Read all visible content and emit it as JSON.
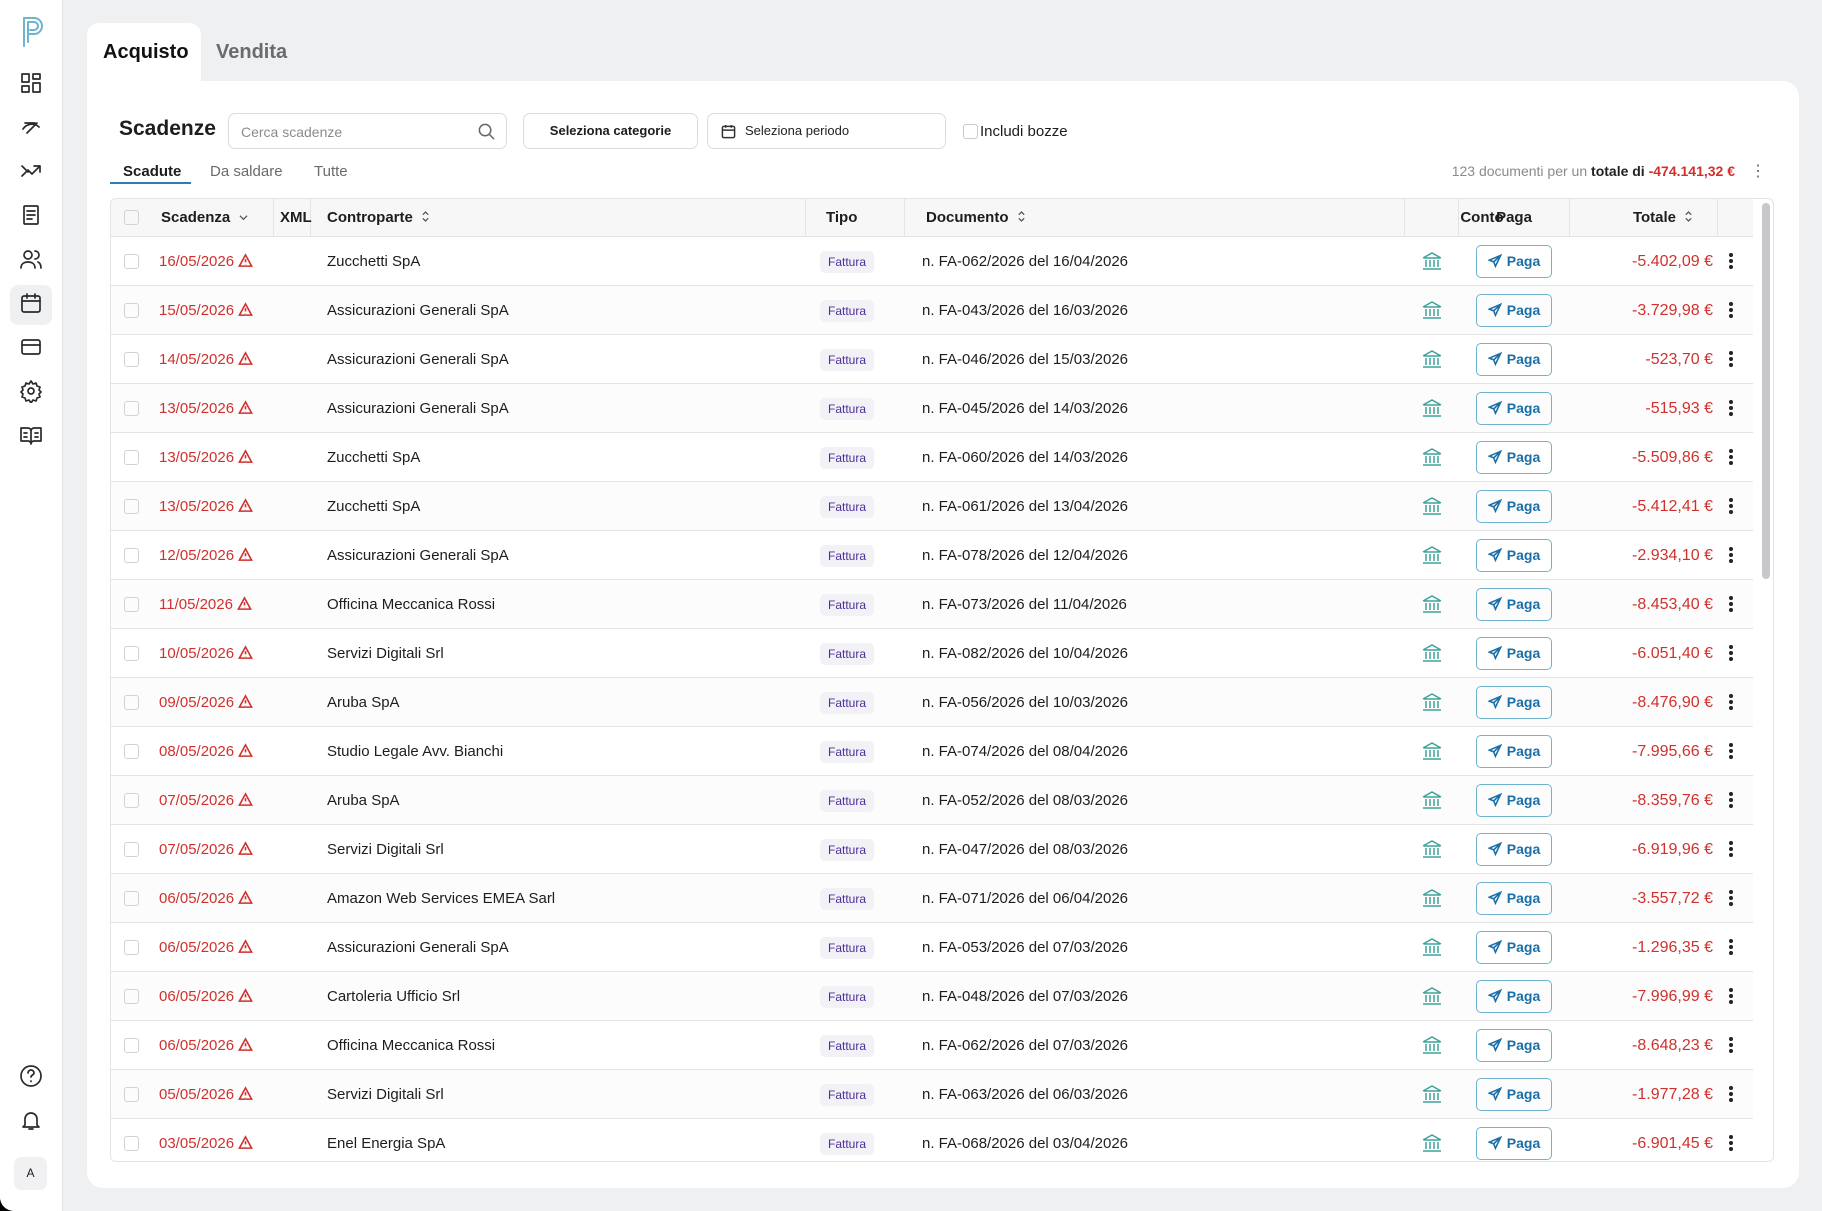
{
  "tabs": [
    "Acquisto",
    "Vendita"
  ],
  "section": {
    "title": "Scadenze",
    "search_placeholder": "Cerca scadenze",
    "category_button": "Seleziona categorie",
    "period_button": "Seleziona periodo",
    "drafts_checkbox": "Includi bozze"
  },
  "filters": [
    "Scadute",
    "Da saldare",
    "Tutte"
  ],
  "summary": {
    "count_text": "123 documenti per un",
    "total_label": "totale di",
    "total": "-474.141,32 €"
  },
  "table": {
    "columns": [
      "Scadenza",
      "XML",
      "Controparte",
      "Tipo",
      "Documento",
      "Conto",
      "Paga",
      "Totale"
    ],
    "pay_label": "Paga",
    "rows": [
      [
        "16/05/2026",
        "Zucchetti SpA",
        "Fattura",
        "n. FA-062/2026 del 16/04/2026",
        "-5.402,09 €"
      ],
      [
        "15/05/2026",
        "Assicurazioni Generali SpA",
        "Fattura",
        "n. FA-043/2026 del 16/03/2026",
        "-3.729,98 €"
      ],
      [
        "14/05/2026",
        "Assicurazioni Generali SpA",
        "Fattura",
        "n. FA-046/2026 del 15/03/2026",
        "-523,70 €"
      ],
      [
        "13/05/2026",
        "Assicurazioni Generali SpA",
        "Fattura",
        "n. FA-045/2026 del 14/03/2026",
        "-515,93 €"
      ],
      [
        "13/05/2026",
        "Zucchetti SpA",
        "Fattura",
        "n. FA-060/2026 del 14/03/2026",
        "-5.509,86 €"
      ],
      [
        "13/05/2026",
        "Zucchetti SpA",
        "Fattura",
        "n. FA-061/2026 del 13/04/2026",
        "-5.412,41 €"
      ],
      [
        "12/05/2026",
        "Assicurazioni Generali SpA",
        "Fattura",
        "n. FA-078/2026 del 12/04/2026",
        "-2.934,10 €"
      ],
      [
        "11/05/2026",
        "Officina Meccanica Rossi",
        "Fattura",
        "n. FA-073/2026 del 11/04/2026",
        "-8.453,40 €"
      ],
      [
        "10/05/2026",
        "Servizi Digitali Srl",
        "Fattura",
        "n. FA-082/2026 del 10/04/2026",
        "-6.051,40 €"
      ],
      [
        "09/05/2026",
        "Aruba SpA",
        "Fattura",
        "n. FA-056/2026 del 10/03/2026",
        "-8.476,90 €"
      ],
      [
        "08/05/2026",
        "Studio Legale Avv. Bianchi",
        "Fattura",
        "n. FA-074/2026 del 08/04/2026",
        "-7.995,66 €"
      ],
      [
        "07/05/2026",
        "Aruba SpA",
        "Fattura",
        "n. FA-052/2026 del 08/03/2026",
        "-8.359,76 €"
      ],
      [
        "07/05/2026",
        "Servizi Digitali Srl",
        "Fattura",
        "n. FA-047/2026 del 08/03/2026",
        "-6.919,96 €"
      ],
      [
        "06/05/2026",
        "Amazon Web Services EMEA Sarl",
        "Fattura",
        "n. FA-071/2026 del 06/04/2026",
        "-3.557,72 €"
      ],
      [
        "06/05/2026",
        "Assicurazioni Generali SpA",
        "Fattura",
        "n. FA-053/2026 del 07/03/2026",
        "-1.296,35 €"
      ],
      [
        "06/05/2026",
        "Cartoleria Ufficio Srl",
        "Fattura",
        "n. FA-048/2026 del 07/03/2026",
        "-7.996,99 €"
      ],
      [
        "06/05/2026",
        "Officina Meccanica Rossi",
        "Fattura",
        "n. FA-062/2026 del 07/03/2026",
        "-8.648,23 €"
      ],
      [
        "05/05/2026",
        "Servizi Digitali Srl",
        "Fattura",
        "n. FA-063/2026 del 06/03/2026",
        "-1.977,28 €"
      ],
      [
        "03/05/2026",
        "Enel Energia SpA",
        "Fattura",
        "n. FA-068/2026 del 03/04/2026",
        "-6.901,45 €"
      ]
    ]
  },
  "avatar": "A"
}
